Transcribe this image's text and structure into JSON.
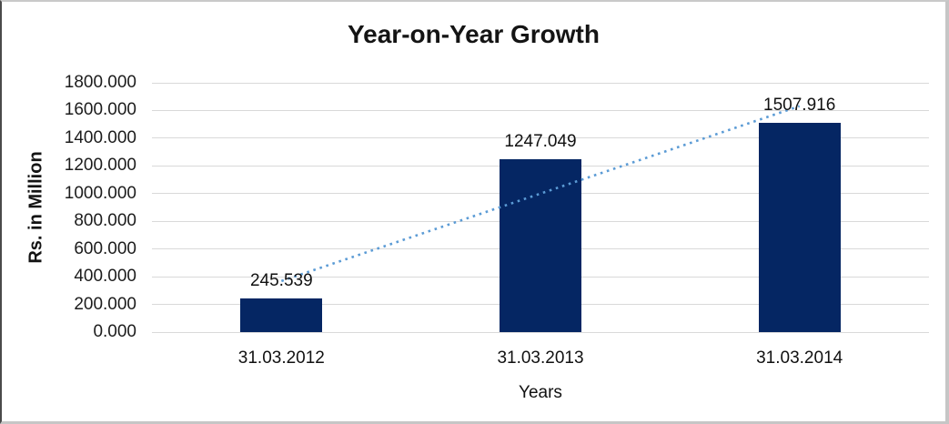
{
  "chart_data": {
    "type": "bar",
    "title": "Year-on-Year Growth",
    "xlabel": "Years",
    "ylabel": "Rs. in Million",
    "categories": [
      "31.03.2012",
      "31.03.2013",
      "31.03.2014"
    ],
    "values": [
      245.539,
      1247.049,
      1507.916
    ],
    "data_labels": [
      "245.539",
      "1247.049",
      "1507.916"
    ],
    "yticks": [
      "1800.000",
      "1600.000",
      "1400.000",
      "1200.000",
      "1000.000",
      "800.000",
      "600.000",
      "400.000",
      "200.000",
      "0.000"
    ],
    "ylim": [
      0,
      1800
    ],
    "grid": "horizontal",
    "legend": "none",
    "trendline": {
      "type": "linear",
      "style": "dotted"
    },
    "colors": {
      "bar": "#052663",
      "trendline": "#5B9BD5",
      "gridline": "#D9D9D9",
      "title_text": "#141414",
      "tick_text": "#1C1C1C"
    }
  }
}
